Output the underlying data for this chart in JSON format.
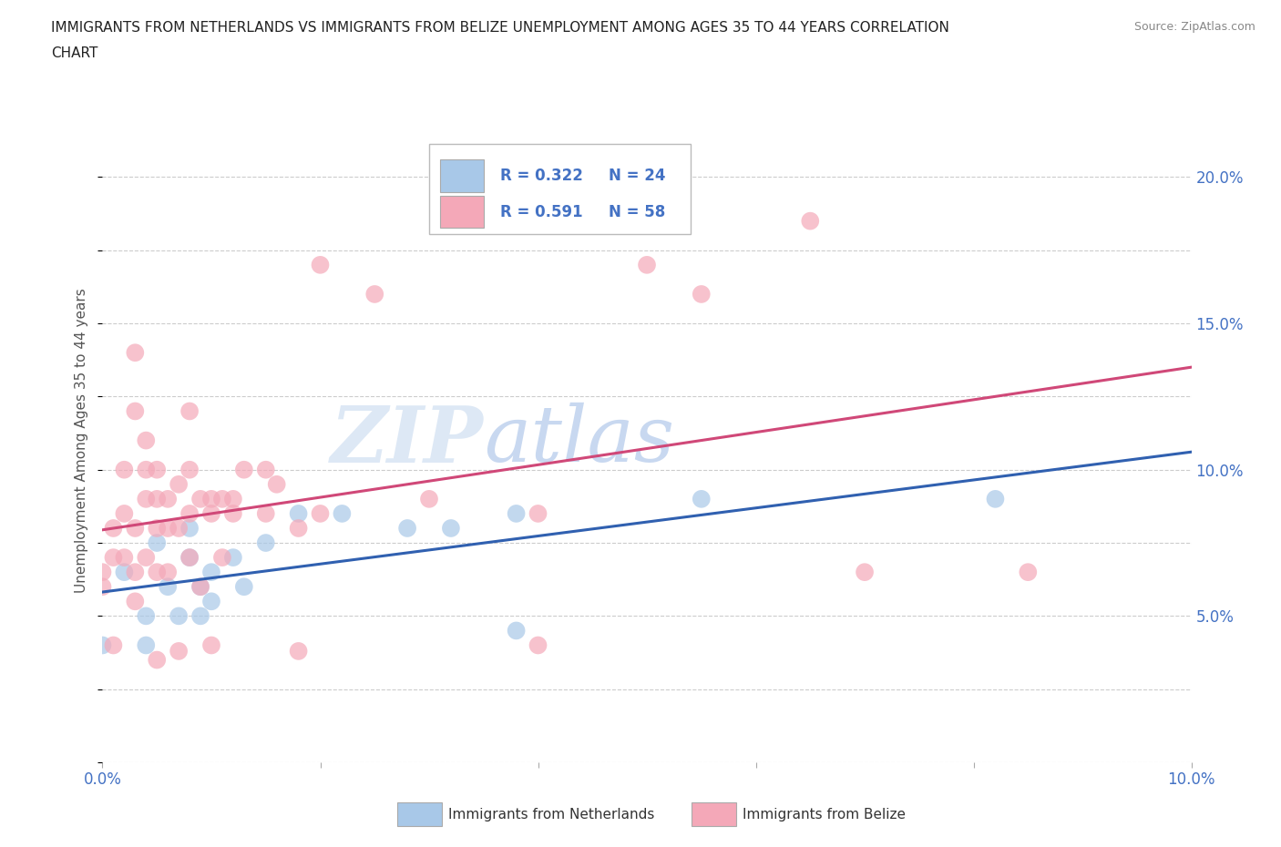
{
  "title_line1": "IMMIGRANTS FROM NETHERLANDS VS IMMIGRANTS FROM BELIZE UNEMPLOYMENT AMONG AGES 35 TO 44 YEARS CORRELATION",
  "title_line2": "CHART",
  "source_text": "Source: ZipAtlas.com",
  "ylabel": "Unemployment Among Ages 35 to 44 years",
  "xlim": [
    0.0,
    0.1
  ],
  "ylim": [
    0.0,
    0.22
  ],
  "netherlands_color": "#a8c8e8",
  "belize_color": "#f4a8b8",
  "netherlands_line_color": "#3060b0",
  "belize_line_color": "#d04878",
  "netherlands_points": [
    [
      0.0,
      0.04
    ],
    [
      0.002,
      0.065
    ],
    [
      0.004,
      0.05
    ],
    [
      0.004,
      0.04
    ],
    [
      0.005,
      0.075
    ],
    [
      0.006,
      0.06
    ],
    [
      0.007,
      0.05
    ],
    [
      0.008,
      0.08
    ],
    [
      0.008,
      0.07
    ],
    [
      0.009,
      0.06
    ],
    [
      0.009,
      0.05
    ],
    [
      0.01,
      0.065
    ],
    [
      0.01,
      0.055
    ],
    [
      0.012,
      0.07
    ],
    [
      0.013,
      0.06
    ],
    [
      0.015,
      0.075
    ],
    [
      0.018,
      0.085
    ],
    [
      0.022,
      0.085
    ],
    [
      0.028,
      0.08
    ],
    [
      0.032,
      0.08
    ],
    [
      0.038,
      0.085
    ],
    [
      0.055,
      0.09
    ],
    [
      0.082,
      0.09
    ],
    [
      0.038,
      0.045
    ]
  ],
  "belize_points": [
    [
      0.0,
      0.06
    ],
    [
      0.0,
      0.065
    ],
    [
      0.001,
      0.07
    ],
    [
      0.001,
      0.08
    ],
    [
      0.001,
      0.04
    ],
    [
      0.002,
      0.07
    ],
    [
      0.002,
      0.085
    ],
    [
      0.002,
      0.1
    ],
    [
      0.003,
      0.055
    ],
    [
      0.003,
      0.065
    ],
    [
      0.003,
      0.08
    ],
    [
      0.003,
      0.12
    ],
    [
      0.003,
      0.14
    ],
    [
      0.004,
      0.07
    ],
    [
      0.004,
      0.09
    ],
    [
      0.004,
      0.1
    ],
    [
      0.004,
      0.11
    ],
    [
      0.005,
      0.035
    ],
    [
      0.005,
      0.065
    ],
    [
      0.005,
      0.08
    ],
    [
      0.005,
      0.09
    ],
    [
      0.005,
      0.1
    ],
    [
      0.006,
      0.065
    ],
    [
      0.006,
      0.08
    ],
    [
      0.006,
      0.09
    ],
    [
      0.007,
      0.038
    ],
    [
      0.007,
      0.08
    ],
    [
      0.007,
      0.095
    ],
    [
      0.008,
      0.07
    ],
    [
      0.008,
      0.085
    ],
    [
      0.008,
      0.1
    ],
    [
      0.008,
      0.12
    ],
    [
      0.009,
      0.06
    ],
    [
      0.009,
      0.09
    ],
    [
      0.01,
      0.04
    ],
    [
      0.01,
      0.085
    ],
    [
      0.01,
      0.09
    ],
    [
      0.011,
      0.07
    ],
    [
      0.011,
      0.09
    ],
    [
      0.012,
      0.085
    ],
    [
      0.012,
      0.09
    ],
    [
      0.013,
      0.1
    ],
    [
      0.015,
      0.085
    ],
    [
      0.015,
      0.1
    ],
    [
      0.016,
      0.095
    ],
    [
      0.018,
      0.038
    ],
    [
      0.018,
      0.08
    ],
    [
      0.02,
      0.085
    ],
    [
      0.02,
      0.17
    ],
    [
      0.025,
      0.16
    ],
    [
      0.03,
      0.09
    ],
    [
      0.04,
      0.04
    ],
    [
      0.04,
      0.085
    ],
    [
      0.05,
      0.17
    ],
    [
      0.055,
      0.16
    ],
    [
      0.065,
      0.185
    ],
    [
      0.07,
      0.065
    ],
    [
      0.085,
      0.065
    ]
  ],
  "grid_color": "#cccccc",
  "background_color": "#ffffff",
  "tick_color": "#4472c4",
  "legend_labels": [
    "Immigrants from Netherlands",
    "Immigrants from Belize"
  ]
}
